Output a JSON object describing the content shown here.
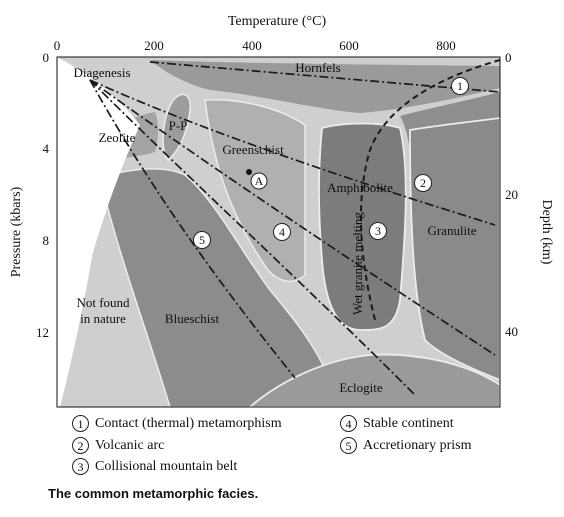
{
  "axes": {
    "top_label": "Temperature (°C)",
    "left_label": "Pressure (kbars)",
    "right_label": "Depth (km)",
    "temperature_ticks": [
      "0",
      "200",
      "400",
      "600",
      "800"
    ],
    "pressure_ticks": [
      "0",
      "4",
      "8",
      "12"
    ],
    "depth_ticks": [
      "0",
      "20",
      "40"
    ]
  },
  "facies": {
    "diagenesis": "Diagenesis",
    "hornfels": "Hornfels",
    "zeolite": "Zeolite",
    "pp": "P-P",
    "greenschist": "Greenschist",
    "amphibolite": "Amphibolite",
    "granulite": "Granulite",
    "blueschist": "Blueschist",
    "eclogite": "Eclogite",
    "not_found_1": "Not found",
    "not_found_2": "in nature",
    "wet_granite": "Wet granite melting"
  },
  "point_label": "A",
  "markers": [
    "1",
    "2",
    "3",
    "4",
    "5"
  ],
  "legend": [
    {
      "num": "1",
      "label": "Contact (thermal) metamorphism"
    },
    {
      "num": "2",
      "label": "Volcanic arc"
    },
    {
      "num": "3",
      "label": "Collisional mountain belt"
    },
    {
      "num": "4",
      "label": "Stable continent"
    },
    {
      "num": "5",
      "label": "Accretionary prism"
    }
  ],
  "caption": "The common metamorphic facies.",
  "colors": {
    "field": "#8e8e8e",
    "lobe": "#b4b4b4",
    "boundary": "#ececec",
    "outside": "#ffffff",
    "lines": "#1a1a1a"
  }
}
